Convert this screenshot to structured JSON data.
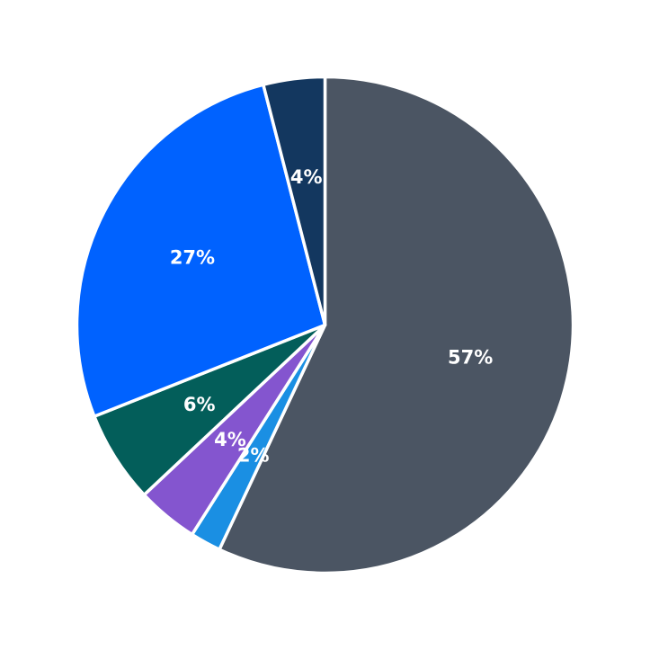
{
  "chart_data": {
    "type": "pie",
    "title": "",
    "start": "top",
    "direction": "clockwise",
    "slices": [
      {
        "value": 57,
        "label": "57%",
        "color": "#4b5563"
      },
      {
        "value": 2,
        "label": "2%",
        "color": "#1a8fe3"
      },
      {
        "value": 4,
        "label": "4%",
        "color": "#8455cf"
      },
      {
        "value": 6,
        "label": "6%",
        "color": "#035e5a"
      },
      {
        "value": 27,
        "label": "27%",
        "color": "#0062ff"
      },
      {
        "value": 4,
        "label": "4%",
        "color": "#13375f"
      }
    ]
  }
}
